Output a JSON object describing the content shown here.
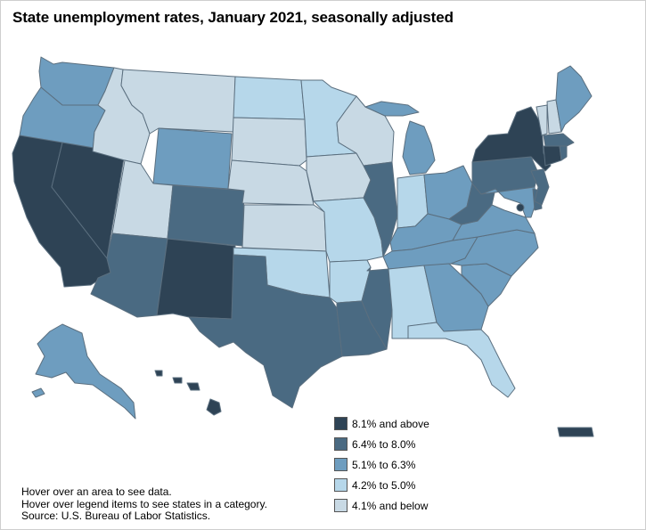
{
  "title": "State unemployment rates, January 2021, seasonally adjusted",
  "colors": {
    "c1": "#2e4355",
    "c2": "#4a6a82",
    "c3": "#6e9dbf",
    "c4": "#b6d7ea",
    "c5": "#c8d9e4",
    "border": "#5b6f7f"
  },
  "legend": [
    {
      "label": "8.1% and above",
      "color": "#2e4355"
    },
    {
      "label": "6.4% to 8.0%",
      "color": "#4a6a82"
    },
    {
      "label": "5.1% to 6.3%",
      "color": "#6e9dbf"
    },
    {
      "label": "4.2% to 5.0%",
      "color": "#b6d7ea"
    },
    {
      "label": "4.1% and below",
      "color": "#c8d9e4"
    }
  ],
  "notes": {
    "line1": "Hover over an area to see data.",
    "line2": "Hover over legend items to see states in a category.",
    "line3": "Source: U.S. Bureau of Labor Statistics."
  },
  "states": {
    "WA": "c3",
    "OR": "c3",
    "CA": "c1",
    "NV": "c1",
    "ID": "c5",
    "MT": "c5",
    "WY": "c3",
    "UT": "c5",
    "AZ": "c2",
    "CO": "c2",
    "NM": "c1",
    "ND": "c4",
    "SD": "c5",
    "NE": "c5",
    "KS": "c5",
    "OK": "c4",
    "TX": "c2",
    "MN": "c4",
    "IA": "c5",
    "MO": "c4",
    "AR": "c4",
    "LA": "c2",
    "WI": "c5",
    "IL": "c2",
    "MS": "c2",
    "MI": "c3",
    "IN": "c4",
    "KY": "c3",
    "TN": "c3",
    "AL": "c4",
    "OH": "c3",
    "GA": "c3",
    "FL": "c4",
    "SC": "c3",
    "NC": "c3",
    "VA": "c3",
    "WV": "c2",
    "PA": "c2",
    "NY": "c1",
    "NJ": "c2",
    "DE": "c2",
    "MD": "c3",
    "DC": "c1",
    "CT": "c1",
    "RI": "c2",
    "MA": "c2",
    "VT": "c5",
    "NH": "c5",
    "ME": "c3",
    "AK": "c3",
    "HI": "c1",
    "PR": "c1"
  }
}
